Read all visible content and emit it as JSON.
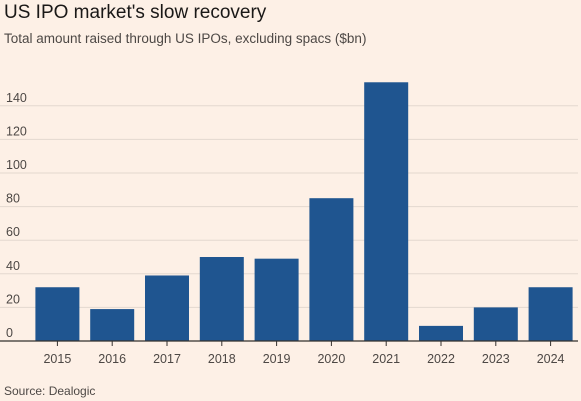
{
  "title": "US IPO market's slow recovery",
  "subtitle": "Total amount raised through US IPOs, excluding spacs ($bn)",
  "source": "Source: Dealogic",
  "colors": {
    "background": "#fdf0e6",
    "bar": "#1f5590",
    "grid": "#e3d8cf",
    "baseline": "#33302e"
  },
  "chart_data": {
    "type": "bar",
    "title": "US IPO market's slow recovery",
    "subtitle": "Total amount raised through US IPOs, excluding spacs ($bn)",
    "xlabel": "",
    "ylabel": "",
    "categories": [
      "2015",
      "2016",
      "2017",
      "2018",
      "2019",
      "2020",
      "2021",
      "2022",
      "2023",
      "2024"
    ],
    "values": [
      32,
      19,
      39,
      50,
      49,
      85,
      154,
      9,
      20,
      32
    ],
    "ylim": [
      0,
      160
    ],
    "yticks": [
      0,
      20,
      40,
      60,
      80,
      100,
      120,
      140
    ],
    "grid": true,
    "legend": "none"
  }
}
